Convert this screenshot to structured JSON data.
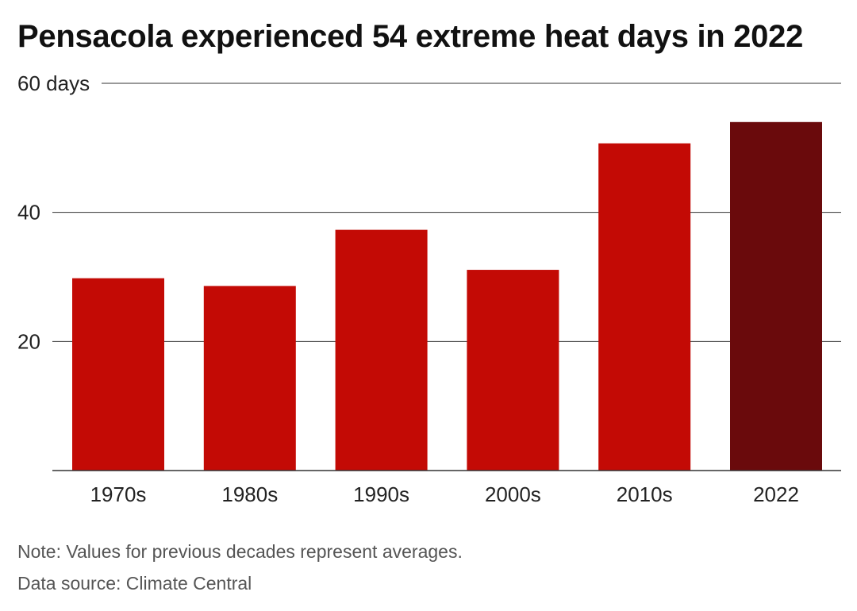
{
  "chart_data": {
    "type": "bar",
    "title": "Pensacola experienced 54 extreme heat days in 2022",
    "categories": [
      "1970s",
      "1980s",
      "1990s",
      "2000s",
      "2010s",
      "2022"
    ],
    "values": [
      29.8,
      28.6,
      37.3,
      31.1,
      50.7,
      54
    ],
    "bar_colors": [
      "#c30a05",
      "#c30a05",
      "#c30a05",
      "#c30a05",
      "#c30a05",
      "#6a0a0c"
    ],
    "ylim": [
      0,
      60
    ],
    "yticks": [
      {
        "value": 20,
        "label": "20"
      },
      {
        "value": 40,
        "label": "40"
      },
      {
        "value": 60,
        "label": "60 days"
      }
    ],
    "xlabel": "",
    "ylabel": "",
    "grid": true,
    "legend": "none"
  },
  "footer": {
    "note": "Note: Values for previous decades represent averages.",
    "source": "Data source: Climate Central"
  }
}
